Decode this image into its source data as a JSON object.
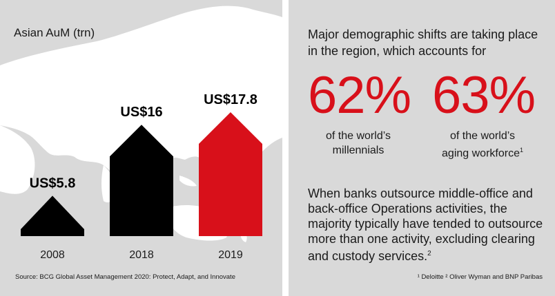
{
  "chart_data": {
    "type": "bar",
    "title": "Asian AuM (trn)",
    "categories": [
      "2008",
      "2018",
      "2019"
    ],
    "values": [
      5.8,
      16,
      17.8
    ],
    "value_labels": [
      "US$5.8",
      "US$16",
      "US$17.8"
    ],
    "colors": [
      "#000000",
      "#000000",
      "#d8101a"
    ],
    "ylim": [
      0,
      17.8
    ],
    "grid": false,
    "source": "Source: BCG Global Asset Management 2020: Protect, Adapt, and Innovate"
  },
  "right_panel": {
    "intro": "Major demographic shifts are taking place in the region, which accounts for",
    "stat1": {
      "value": "62%",
      "caption_line1": "of the world’s",
      "caption_line2": "millennials"
    },
    "stat2": {
      "value": "63%",
      "caption_line1": "of the world’s",
      "caption_line2": "aging workforce",
      "caption_sup": "1"
    },
    "body": "When banks outsource middle-office and back-office Operations activities, the majority typically have tended to outsource more than one activity, excluding clearing and custody services.",
    "body_sup": "2",
    "footnote": "¹ Deloitte ² Oliver Wyman and BNP Paribas"
  },
  "colors": {
    "accent": "#d8101a",
    "panel_bg": "#d9d9d9",
    "map": "#ffffff",
    "bar_dark": "#000000"
  }
}
